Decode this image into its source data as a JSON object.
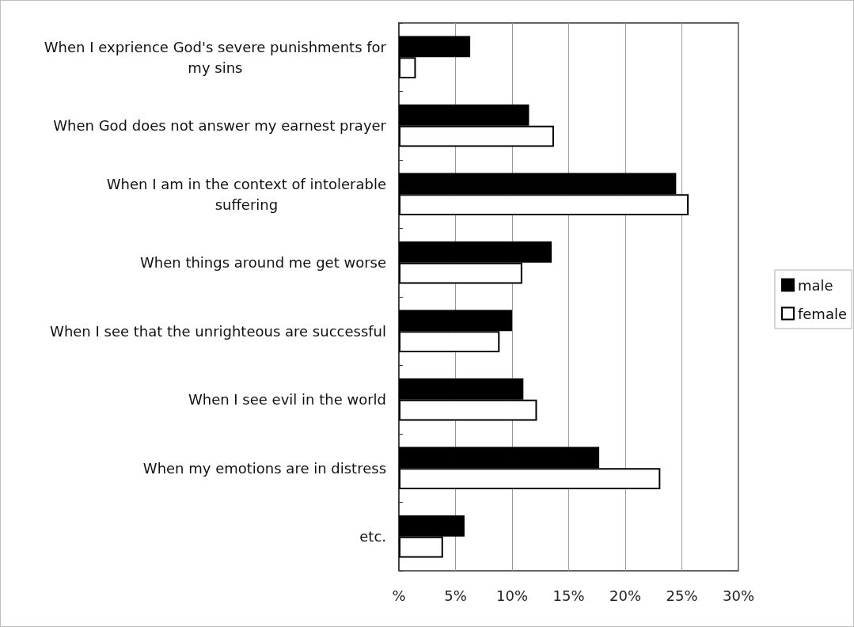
{
  "chart_data": {
    "type": "bar",
    "orientation": "horizontal",
    "categories": [
      "When I exprience God's severe punishments for my sins",
      "When God does not answer my earnest prayer",
      "When I am in the context of intolerable suffering",
      "When things around me get worse",
      "When I see that the unrighteous are successful",
      "When I see evil in the world",
      "When my emotions are in distress",
      "etc."
    ],
    "series": [
      {
        "name": "male",
        "color": "#000000",
        "values": [
          6.3,
          11.5,
          24.5,
          13.5,
          10.0,
          11.0,
          17.7,
          5.8
        ]
      },
      {
        "name": "female",
        "color": "#ffffff",
        "values": [
          1.5,
          13.7,
          25.6,
          10.9,
          8.9,
          12.2,
          23.1,
          3.9
        ]
      }
    ],
    "xlim": [
      0,
      30
    ],
    "xticks": [
      {
        "value": 0,
        "label": "%"
      },
      {
        "value": 5,
        "label": "5%"
      },
      {
        "value": 10,
        "label": "10%"
      },
      {
        "value": 15,
        "label": "15%"
      },
      {
        "value": 20,
        "label": "20%"
      },
      {
        "value": 25,
        "label": "25%"
      },
      {
        "value": 30,
        "label": "30%"
      }
    ],
    "grid": "x",
    "legend": "right"
  }
}
